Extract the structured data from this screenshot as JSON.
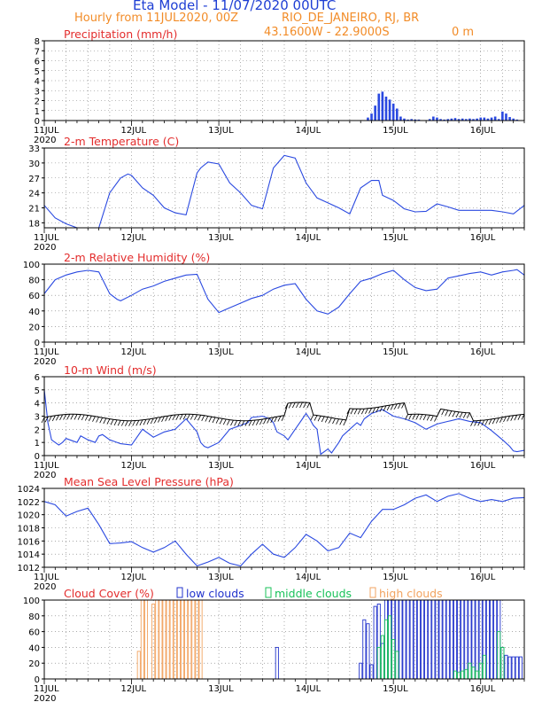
{
  "header": {
    "title": "Eta Model - 11/07/2020 00UTC",
    "subtitle": "Hourly from 11JUL2020, 00Z",
    "location": "RIO_DE_JANEIRO, RJ, BR",
    "coords": "43.1600W - 22.9000S",
    "elevation": "0 m"
  },
  "colors": {
    "title": "#1f3fd4",
    "sub": "#f28c28",
    "panel_title": "#e32d2d",
    "line": "#2a49e0",
    "black": "#000000",
    "low": "#2233cc",
    "mid": "#19c25a",
    "high": "#f2a360"
  },
  "x_axis": {
    "ticks": [
      "11JUL",
      "12JUL",
      "13JUL",
      "14JUL",
      "15JUL",
      "16JUL"
    ],
    "start_label": "2020",
    "hours_total": 132
  },
  "chart_data": [
    {
      "type": "bar",
      "title": "Precipitation (mm/h)",
      "ylim": [
        0,
        8
      ],
      "yticks": [
        0,
        1,
        2,
        3,
        4,
        5,
        6,
        7,
        8
      ],
      "x": [
        89,
        90,
        91,
        92,
        93,
        94,
        95,
        96,
        97,
        98,
        99,
        100,
        101,
        102,
        103,
        106,
        107,
        108,
        109,
        110,
        111,
        112,
        113,
        114,
        115,
        116,
        117,
        118,
        119,
        120,
        121,
        122,
        123,
        124,
        125,
        126,
        127,
        128,
        129,
        130
      ],
      "values": [
        0.3,
        0.7,
        1.5,
        2.7,
        2.9,
        2.4,
        2.1,
        1.7,
        1.2,
        0.4,
        0.2,
        0.1,
        0.15,
        0.1,
        0.1,
        0.15,
        0.4,
        0.3,
        0.15,
        0.1,
        0.15,
        0.2,
        0.25,
        0.15,
        0.2,
        0.15,
        0.2,
        0.15,
        0.2,
        0.3,
        0.3,
        0.2,
        0.3,
        0.4,
        0.15,
        0.9,
        0.7,
        0.35,
        0.2,
        0.1
      ]
    },
    {
      "type": "line",
      "title": "2-m Temperature (C)",
      "ylim": [
        17,
        33
      ],
      "yticks": [
        18,
        21,
        24,
        27,
        30,
        33
      ],
      "x": [
        0,
        3,
        6,
        9,
        12,
        15,
        18,
        21,
        23,
        24,
        27,
        30,
        33,
        36,
        39,
        42,
        43,
        45,
        48,
        51,
        54,
        57,
        60,
        63,
        66,
        69,
        72,
        75,
        78,
        81,
        84,
        87,
        90,
        92,
        93,
        96,
        99,
        102,
        105,
        108,
        111,
        114,
        117,
        120,
        123,
        126,
        129,
        132
      ],
      "values": [
        21.5,
        19,
        17.8,
        16.8,
        16.5,
        16.6,
        24,
        27,
        27.8,
        27.5,
        25,
        23.5,
        21,
        20,
        19.6,
        28,
        29,
        30.2,
        29.8,
        26,
        24,
        21.5,
        20.8,
        29,
        31.5,
        31,
        26,
        23,
        22,
        21,
        19.8,
        25,
        26.5,
        26.5,
        23.5,
        22.5,
        20.8,
        20.2,
        20.3,
        21.8,
        21.2,
        20.5,
        20.5,
        20.5,
        20.5,
        20.2,
        19.8,
        21.5
      ]
    },
    {
      "type": "line",
      "title": "2-m Relative Humidity (%)",
      "ylim": [
        0,
        100
      ],
      "yticks": [
        0,
        20,
        40,
        60,
        80,
        100
      ],
      "x": [
        0,
        3,
        6,
        9,
        12,
        15,
        18,
        20,
        21,
        24,
        27,
        30,
        33,
        36,
        39,
        42,
        45,
        48,
        50,
        51,
        54,
        57,
        60,
        63,
        66,
        69,
        72,
        75,
        78,
        81,
        84,
        87,
        90,
        93,
        96,
        99,
        102,
        105,
        108,
        111,
        114,
        117,
        120,
        123,
        126,
        129,
        130,
        132
      ],
      "values": [
        62,
        80,
        86,
        90,
        92,
        90,
        62,
        55,
        53,
        60,
        68,
        72,
        78,
        82,
        86,
        87,
        55,
        38,
        42,
        44,
        50,
        56,
        60,
        68,
        73,
        75,
        55,
        40,
        36,
        45,
        62,
        78,
        82,
        88,
        92,
        80,
        70,
        66,
        68,
        82,
        85,
        88,
        90,
        86,
        90,
        92,
        93,
        86
      ]
    },
    {
      "type": "line",
      "title": "10-m Wind (m/s)",
      "ylim": [
        0,
        6
      ],
      "yticks": [
        0,
        1,
        2,
        3,
        4,
        5,
        6
      ],
      "x": [
        0,
        1,
        2,
        3,
        4,
        5,
        6,
        7,
        8,
        9,
        10,
        12,
        14,
        15,
        16,
        18,
        21,
        24,
        27,
        30,
        33,
        36,
        39,
        42,
        43,
        44,
        45,
        48,
        51,
        54,
        56,
        57,
        60,
        62,
        63,
        64,
        66,
        67,
        68,
        69,
        70,
        71,
        72,
        73,
        74,
        75,
        76,
        78,
        79,
        80,
        81,
        82,
        84,
        86,
        87,
        88,
        90,
        93,
        96,
        99,
        102,
        105,
        108,
        111,
        114,
        117,
        120,
        123,
        126,
        128,
        129,
        130,
        132
      ],
      "values": [
        5.0,
        2.5,
        1.2,
        1.0,
        0.8,
        1.0,
        1.3,
        1.2,
        1.1,
        1.0,
        1.5,
        1.2,
        1.0,
        1.5,
        1.6,
        1.2,
        0.9,
        0.8,
        2.0,
        1.4,
        1.8,
        2.0,
        2.8,
        1.8,
        1.0,
        0.7,
        0.6,
        1.0,
        2.0,
        2.3,
        2.5,
        2.9,
        3.0,
        2.8,
        2.5,
        1.8,
        1.5,
        1.2,
        1.6,
        2.0,
        2.4,
        2.8,
        3.2,
        2.8,
        2.3,
        2.0,
        0.1,
        0.5,
        0.2,
        0.6,
        1.0,
        1.5,
        2.0,
        2.5,
        2.3,
        2.8,
        3.2,
        3.5,
        3.0,
        2.8,
        2.5,
        2.0,
        2.4,
        2.6,
        2.8,
        2.6,
        2.5,
        1.9,
        1.2,
        0.7,
        0.35,
        0.3,
        0.4
      ]
    },
    {
      "type": "line",
      "title": "Mean Sea Level Pressure (hPa)",
      "ylim": [
        1012,
        1024
      ],
      "yticks": [
        1012,
        1014,
        1016,
        1018,
        1020,
        1022,
        1024
      ],
      "x": [
        0,
        3,
        6,
        9,
        12,
        15,
        18,
        21,
        24,
        27,
        30,
        33,
        36,
        39,
        42,
        45,
        48,
        51,
        54,
        57,
        60,
        63,
        66,
        69,
        72,
        75,
        78,
        81,
        84,
        87,
        90,
        93,
        96,
        99,
        102,
        105,
        108,
        111,
        114,
        117,
        120,
        123,
        126,
        129,
        132
      ],
      "values": [
        1022,
        1021.5,
        1019.8,
        1020.5,
        1021,
        1018.5,
        1015.6,
        1015.7,
        1015.9,
        1015,
        1014.3,
        1015,
        1016,
        1014,
        1012.2,
        1012.8,
        1013.5,
        1012.6,
        1012.2,
        1014,
        1015.5,
        1014,
        1013.5,
        1015,
        1017,
        1016,
        1014.5,
        1015,
        1017.2,
        1016.5,
        1019,
        1020.8,
        1020.8,
        1021.5,
        1022.5,
        1023,
        1022,
        1022.8,
        1023.2,
        1022.5,
        1022,
        1022.3,
        1022,
        1022.5,
        1022.6
      ]
    },
    {
      "type": "bar",
      "title": "Cloud Cover (%)",
      "legend": [
        "low clouds",
        "middle clouds",
        "high clouds"
      ],
      "ylim": [
        0,
        100
      ],
      "yticks": [
        0,
        20,
        40,
        60,
        80,
        100
      ],
      "low": {
        "x": [
          64,
          87,
          88,
          89,
          90,
          91,
          92,
          93,
          94,
          95,
          96,
          97,
          98,
          99,
          100,
          101,
          102,
          103,
          104,
          105,
          106,
          107,
          108,
          109,
          110,
          111,
          112,
          113,
          114,
          115,
          116,
          117,
          118,
          119,
          120,
          121,
          122,
          123,
          124,
          125,
          126,
          127,
          128,
          129,
          130,
          131
        ],
        "values": [
          40,
          20,
          75,
          70,
          18,
          92,
          95,
          45,
          100,
          100,
          100,
          100,
          100,
          100,
          100,
          100,
          100,
          100,
          100,
          100,
          100,
          100,
          100,
          100,
          100,
          100,
          100,
          100,
          100,
          100,
          100,
          100,
          100,
          100,
          100,
          100,
          100,
          100,
          100,
          100,
          40,
          30,
          28,
          28,
          28,
          28
        ]
      },
      "mid": {
        "x": [
          92,
          93,
          94,
          95,
          96,
          97,
          113,
          114,
          115,
          116,
          117,
          118,
          119,
          120,
          121,
          125,
          126
        ],
        "values": [
          40,
          55,
          75,
          80,
          50,
          35,
          10,
          8,
          10,
          12,
          20,
          15,
          10,
          20,
          30,
          60,
          40
        ]
      },
      "high": {
        "x": [
          26,
          27,
          28,
          30,
          31,
          32,
          33,
          34,
          35,
          36,
          37,
          38,
          39,
          40,
          41,
          42,
          43
        ],
        "values": [
          35,
          100,
          100,
          95,
          100,
          100,
          100,
          100,
          100,
          100,
          100,
          100,
          100,
          100,
          100,
          100,
          100
        ]
      }
    }
  ]
}
